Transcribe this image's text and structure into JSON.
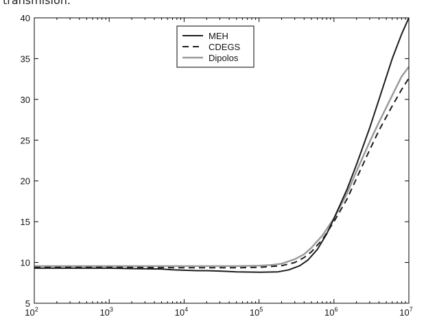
{
  "caption_fragment": "transmision.",
  "chart_data": {
    "type": "line",
    "x_scale": "log",
    "xlim": [
      100,
      10000000
    ],
    "ylim": [
      5,
      40
    ],
    "xticks": [
      {
        "base": "10",
        "exp": "2"
      },
      {
        "base": "10",
        "exp": "3"
      },
      {
        "base": "10",
        "exp": "4"
      },
      {
        "base": "10",
        "exp": "5"
      },
      {
        "base": "10",
        "exp": "6"
      },
      {
        "base": "10",
        "exp": "7"
      }
    ],
    "yticks": [
      "5",
      "10",
      "15",
      "20",
      "25",
      "30",
      "35",
      "40"
    ],
    "legend_position": "top-center",
    "series": [
      {
        "name": "MEH",
        "color": "#1a1a1a",
        "dash": "solid",
        "x": [
          100,
          1000,
          2000,
          5000,
          7000,
          10000,
          15000,
          20000,
          30000,
          50000,
          100000,
          180000,
          250000,
          350000,
          450000,
          600000,
          800000,
          1000000,
          1500000,
          2000000,
          3000000,
          4000000,
          6000000,
          8000000,
          10000000
        ],
        "y": [
          9.3,
          9.3,
          9.25,
          9.2,
          9.1,
          9.05,
          9.0,
          9.0,
          8.95,
          8.85,
          8.8,
          8.85,
          9.1,
          9.6,
          10.3,
          11.6,
          13.5,
          15.4,
          19.0,
          22.0,
          26.5,
          30.0,
          35.0,
          38.0,
          40.0
        ]
      },
      {
        "name": "CDEGS",
        "color": "#1a1a1a",
        "dash": "dashed",
        "x": [
          100,
          1000,
          10000,
          50000,
          100000,
          200000,
          300000,
          400000,
          500000,
          700000,
          1000000,
          1500000,
          2000000,
          3000000,
          4000000,
          6000000,
          8000000,
          10000000
        ],
        "y": [
          9.4,
          9.4,
          9.35,
          9.35,
          9.4,
          9.6,
          10.0,
          10.6,
          11.3,
          12.8,
          15.0,
          17.8,
          20.3,
          23.8,
          26.2,
          29.2,
          31.2,
          32.6
        ]
      },
      {
        "name": "Dipolos",
        "color": "#9a9a9a",
        "dash": "solid",
        "x": [
          100,
          1000,
          10000,
          50000,
          100000,
          150000,
          200000,
          300000,
          400000,
          500000,
          700000,
          1000000,
          1500000,
          2000000,
          3000000,
          4000000,
          6000000,
          8000000,
          10000000
        ],
        "y": [
          9.55,
          9.55,
          9.55,
          9.55,
          9.6,
          9.7,
          9.85,
          10.4,
          11.0,
          11.8,
          13.3,
          15.4,
          18.5,
          21.2,
          24.8,
          27.2,
          30.5,
          32.8,
          34.0
        ]
      }
    ]
  }
}
